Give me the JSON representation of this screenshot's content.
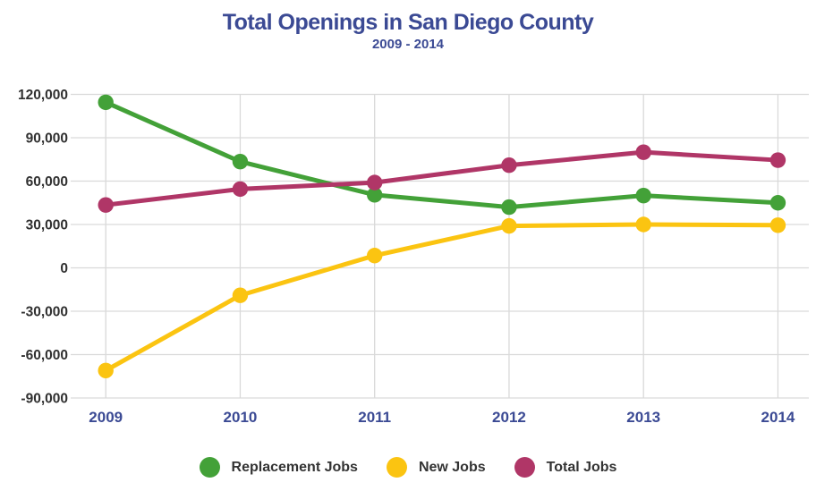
{
  "header": {
    "title": "Total Openings in San Diego County",
    "subtitle": "2009 - 2014"
  },
  "chart_data": {
    "type": "line",
    "title": "Total Openings in San Diego County",
    "subtitle": "2009 - 2014",
    "categories": [
      "2009",
      "2010",
      "2011",
      "2012",
      "2013",
      "2014"
    ],
    "series": [
      {
        "name": "Replacement Jobs",
        "color": "#43A138",
        "values": [
          114500,
          73500,
          50500,
          42000,
          50000,
          45000
        ]
      },
      {
        "name": "New Jobs",
        "color": "#FBC411",
        "values": [
          -71000,
          -19000,
          8500,
          29000,
          30000,
          29500
        ]
      },
      {
        "name": "Total Jobs",
        "color": "#B03667",
        "values": [
          43500,
          54500,
          59000,
          71000,
          80000,
          74500
        ]
      }
    ],
    "ylim": [
      -90000,
      120000
    ],
    "yticks": [
      120000,
      90000,
      60000,
      30000,
      0,
      -30000,
      -60000,
      -90000
    ],
    "ytick_labels": [
      "120,000",
      "90,000",
      "60,000",
      "30,000",
      "0",
      "-30,000",
      "-60,000",
      "-90,000"
    ],
    "grid": true,
    "legend_position": "bottom",
    "marker": "circle"
  },
  "colors": {
    "title_text": "#3B4A94",
    "x_tick_text": "#3B4A94",
    "y_tick_text": "#303030",
    "legend_text": "#333333",
    "gridline": "#D9D9D9",
    "background": "#FFFFFF"
  }
}
